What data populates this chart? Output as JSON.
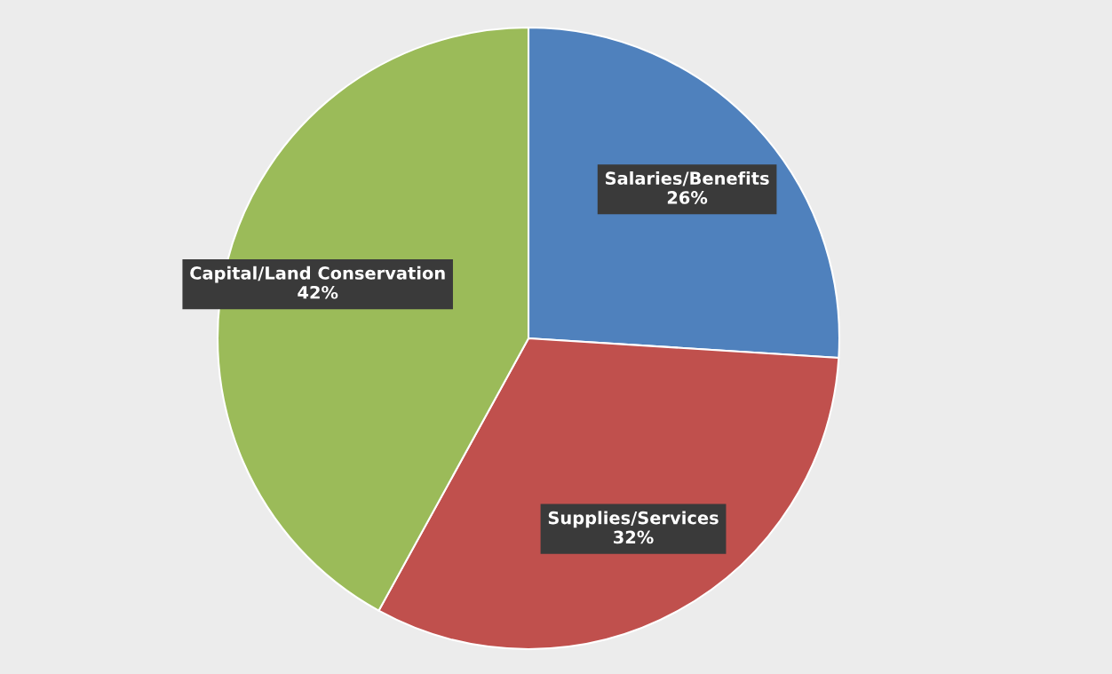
{
  "chart_data": {
    "type": "pie",
    "categories": [
      "Salaries/Benefits",
      "Supplies/Services",
      "Capital/Land Conservation"
    ],
    "values": [
      26,
      32,
      42
    ],
    "value_labels": [
      "26%",
      "32%",
      "42%"
    ],
    "colors": [
      "#4f81bd",
      "#c0504d",
      "#9bbb59"
    ],
    "legend": false
  }
}
